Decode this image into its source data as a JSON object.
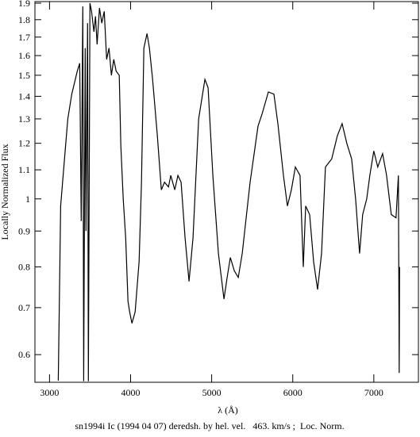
{
  "chart_data": {
    "type": "line",
    "title": "sn1994i Ic (1994 04 07) deredsh. by hel. vel.   463. km/s ;  Loc. Norm.",
    "x_label": "λ (Å)",
    "y_label": "Locally Normalized Flux",
    "log_y": true,
    "color": "#000000",
    "xlim": [
      2820,
      7550
    ],
    "ylim": [
      0.548,
      1.91
    ],
    "xticks": [
      3000,
      4000,
      5000,
      6000,
      7000
    ],
    "yticks": [
      0.6,
      0.7,
      0.8,
      0.9,
      1,
      1.1,
      1.2,
      1.3,
      1.4,
      1.5,
      1.6,
      1.7,
      1.8,
      1.9
    ],
    "x": [
      3108,
      3137,
      3176,
      3225,
      3274,
      3342,
      3372,
      3391,
      3411,
      3421,
      3440,
      3450,
      3469,
      3479,
      3499,
      3518,
      3548,
      3567,
      3587,
      3616,
      3645,
      3675,
      3704,
      3734,
      3763,
      3792,
      3822,
      3860,
      3880,
      3909,
      3939,
      3968,
      3988,
      4017,
      4056,
      4105,
      4134,
      4164,
      4203,
      4232,
      4271,
      4330,
      4379,
      4418,
      4467,
      4496,
      4545,
      4584,
      4623,
      4672,
      4721,
      4770,
      4839,
      4917,
      4956,
      5015,
      5083,
      5152,
      5191,
      5230,
      5279,
      5328,
      5377,
      5474,
      5572,
      5621,
      5699,
      5768,
      5817,
      5885,
      5934,
      5983,
      6032,
      6090,
      6130,
      6159,
      6208,
      6257,
      6306,
      6355,
      6403,
      6481,
      6550,
      6609,
      6667,
      6726,
      6775,
      6824,
      6863,
      6912,
      6951,
      7000,
      7049,
      7108,
      7157,
      7215,
      7274,
      7303,
      7313,
      7318
    ],
    "values": [
      0.551,
      0.977,
      1.11,
      1.3,
      1.41,
      1.52,
      1.56,
      0.93,
      1.88,
      0.55,
      1.64,
      0.9,
      1.78,
      0.55,
      1.9,
      1.85,
      1.73,
      1.82,
      1.66,
      1.87,
      1.78,
      1.85,
      1.58,
      1.64,
      1.5,
      1.58,
      1.52,
      1.5,
      1.19,
      1.0,
      0.88,
      0.715,
      0.69,
      0.665,
      0.69,
      0.814,
      1.056,
      1.64,
      1.72,
      1.64,
      1.48,
      1.23,
      1.03,
      1.056,
      1.04,
      1.08,
      1.03,
      1.08,
      1.056,
      0.88,
      0.763,
      0.88,
      1.3,
      1.48,
      1.44,
      1.08,
      0.836,
      0.72,
      0.773,
      0.825,
      0.79,
      0.773,
      0.836,
      1.056,
      1.27,
      1.32,
      1.42,
      1.41,
      1.28,
      1.08,
      0.977,
      1.03,
      1.11,
      1.08,
      0.8,
      0.977,
      0.95,
      0.814,
      0.743,
      0.836,
      1.11,
      1.14,
      1.23,
      1.28,
      1.2,
      1.14,
      1.0,
      0.836,
      0.95,
      1.0,
      1.08,
      1.17,
      1.11,
      1.16,
      1.08,
      0.95,
      0.94,
      1.08,
      0.565,
      0.8
    ]
  }
}
